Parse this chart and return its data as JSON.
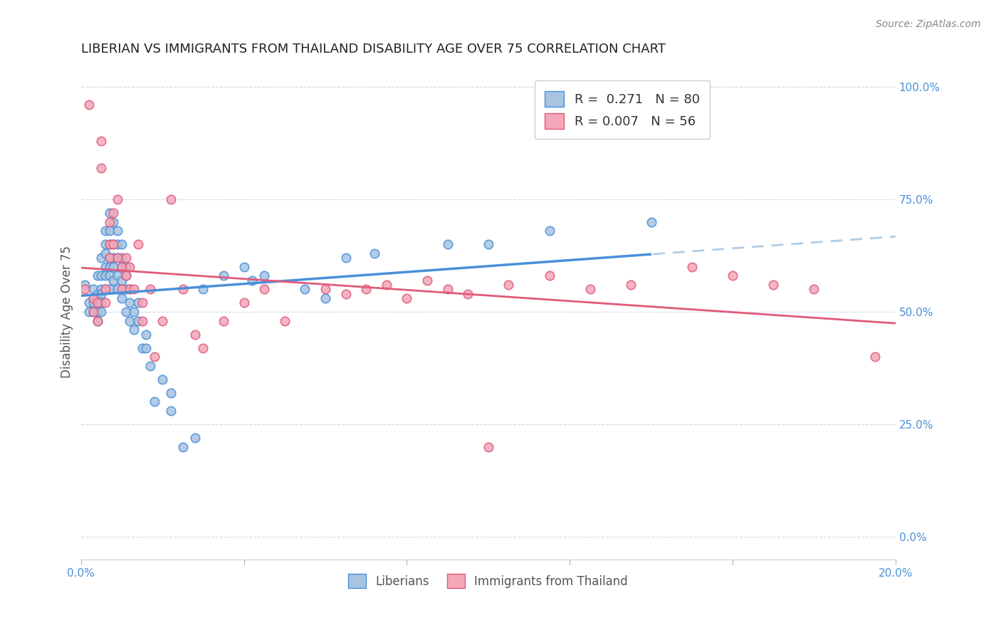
{
  "title": "LIBERIAN VS IMMIGRANTS FROM THAILAND DISABILITY AGE OVER 75 CORRELATION CHART",
  "source": "Source: ZipAtlas.com",
  "ylabel": "Disability Age Over 75",
  "legend_label1": "Liberians",
  "legend_label2": "Immigrants from Thailand",
  "r1": "0.271",
  "n1": "80",
  "r2": "0.007",
  "n2": "56",
  "xmin": 0.0,
  "xmax": 0.2,
  "ymin": 0.0,
  "ymax": 1.05,
  "color1": "#a8c4e0",
  "color2": "#f4a7b9",
  "trendline1_color": "#4a90d9",
  "trendline2_color": "#e05a7a",
  "trendline1_ext_color": "#b0cce8",
  "right_axis_color": "#4a90d9",
  "background_color": "#ffffff",
  "grid_color": "#d0d8e8",
  "liberian_x": [
    0.001,
    0.002,
    0.002,
    0.003,
    0.003,
    0.003,
    0.003,
    0.004,
    0.004,
    0.004,
    0.004,
    0.004,
    0.005,
    0.005,
    0.005,
    0.005,
    0.005,
    0.005,
    0.006,
    0.006,
    0.006,
    0.006,
    0.006,
    0.006,
    0.007,
    0.007,
    0.007,
    0.007,
    0.007,
    0.007,
    0.007,
    0.008,
    0.008,
    0.008,
    0.008,
    0.008,
    0.009,
    0.009,
    0.009,
    0.009,
    0.009,
    0.01,
    0.01,
    0.01,
    0.01,
    0.01,
    0.011,
    0.011,
    0.011,
    0.011,
    0.012,
    0.012,
    0.012,
    0.013,
    0.013,
    0.014,
    0.014,
    0.015,
    0.016,
    0.016,
    0.017,
    0.018,
    0.02,
    0.022,
    0.022,
    0.025,
    0.028,
    0.03,
    0.035,
    0.04,
    0.042,
    0.045,
    0.055,
    0.06,
    0.065,
    0.072,
    0.09,
    0.1,
    0.115,
    0.14
  ],
  "liberian_y": [
    0.56,
    0.52,
    0.5,
    0.55,
    0.53,
    0.52,
    0.5,
    0.58,
    0.54,
    0.52,
    0.5,
    0.48,
    0.62,
    0.58,
    0.55,
    0.54,
    0.52,
    0.5,
    0.68,
    0.65,
    0.63,
    0.6,
    0.58,
    0.55,
    0.72,
    0.68,
    0.65,
    0.62,
    0.6,
    0.58,
    0.55,
    0.7,
    0.65,
    0.62,
    0.6,
    0.57,
    0.68,
    0.65,
    0.62,
    0.58,
    0.55,
    0.65,
    0.62,
    0.6,
    0.57,
    0.53,
    0.6,
    0.58,
    0.55,
    0.5,
    0.55,
    0.52,
    0.48,
    0.5,
    0.46,
    0.52,
    0.48,
    0.42,
    0.45,
    0.42,
    0.38,
    0.3,
    0.35,
    0.32,
    0.28,
    0.2,
    0.22,
    0.55,
    0.58,
    0.6,
    0.57,
    0.58,
    0.55,
    0.53,
    0.62,
    0.63,
    0.65,
    0.65,
    0.68,
    0.7
  ],
  "thailand_x": [
    0.001,
    0.002,
    0.003,
    0.003,
    0.004,
    0.004,
    0.005,
    0.005,
    0.006,
    0.006,
    0.007,
    0.007,
    0.007,
    0.008,
    0.008,
    0.009,
    0.009,
    0.01,
    0.01,
    0.011,
    0.011,
    0.012,
    0.012,
    0.013,
    0.014,
    0.015,
    0.015,
    0.017,
    0.018,
    0.02,
    0.022,
    0.025,
    0.028,
    0.03,
    0.035,
    0.04,
    0.045,
    0.05,
    0.06,
    0.065,
    0.07,
    0.075,
    0.08,
    0.085,
    0.09,
    0.095,
    0.1,
    0.105,
    0.115,
    0.125,
    0.135,
    0.15,
    0.16,
    0.17,
    0.18,
    0.195
  ],
  "thailand_y": [
    0.55,
    0.96,
    0.53,
    0.5,
    0.52,
    0.48,
    0.88,
    0.82,
    0.55,
    0.52,
    0.7,
    0.65,
    0.62,
    0.72,
    0.65,
    0.75,
    0.62,
    0.6,
    0.55,
    0.62,
    0.58,
    0.6,
    0.55,
    0.55,
    0.65,
    0.52,
    0.48,
    0.55,
    0.4,
    0.48,
    0.75,
    0.55,
    0.45,
    0.42,
    0.48,
    0.52,
    0.55,
    0.48,
    0.55,
    0.54,
    0.55,
    0.56,
    0.53,
    0.57,
    0.55,
    0.54,
    0.2,
    0.56,
    0.58,
    0.55,
    0.56,
    0.6,
    0.58,
    0.56,
    0.55,
    0.4
  ],
  "yticks": [
    0.0,
    0.25,
    0.5,
    0.75,
    1.0
  ],
  "ytick_labels_right": [
    "0.0%",
    "25.0%",
    "50.0%",
    "75.0%",
    "100.0%"
  ],
  "xticks": [
    0.0,
    0.04,
    0.08,
    0.12,
    0.16,
    0.2
  ],
  "xtick_labels": [
    "0.0%",
    "",
    "",
    "",
    "",
    "20.0%"
  ]
}
